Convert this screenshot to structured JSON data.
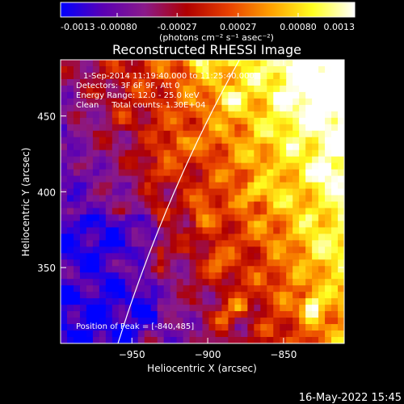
{
  "footer": {
    "date_stamp": "16-May-2022 15:45"
  },
  "colorbar": {
    "tick_labels": [
      "-0.0013",
      "-0.00080",
      "-0.00027",
      "0.00027",
      "0.00080",
      "0.0013"
    ],
    "tick_values": [
      -0.0013,
      -0.0008,
      -0.00027,
      0.00027,
      0.0008,
      0.0013
    ],
    "range": [
      -0.0013,
      0.0013
    ],
    "unit_label": "(photons cm⁻² s⁻¹ asec⁻²)",
    "colormap": [
      "#0000ff",
      "#5a00b4",
      "#8a1a8a",
      "#b00000",
      "#e84000",
      "#ffa000",
      "#ffff20",
      "#ffffff"
    ]
  },
  "chart_data": {
    "type": "heatmap",
    "title": "Reconstructed RHESSI Image",
    "xlabel": "Heliocentric X (arcsec)",
    "ylabel": "Heliocentric Y (arcsec)",
    "xlim": [
      -997,
      -810
    ],
    "ylim": [
      300,
      487
    ],
    "x_tick_labels": [
      "−950",
      "−900",
      "−850"
    ],
    "x_ticks": [
      -950,
      -900,
      -850
    ],
    "y_tick_labels": [
      "350",
      "400",
      "450"
    ],
    "y_ticks": [
      350,
      400,
      450
    ],
    "annotations": {
      "time_range": "1-Sep-2014 11:19:40.000 to 11:25:40.000",
      "detectors": "Detectors: 3F 6F 9F, Att 0",
      "energy_range": "Energy Range: 12.0 - 25.0 keV",
      "clean_counts": "Clean     Total counts: 1.30E+04",
      "peak": "Position of Peak = [-840,485]"
    },
    "peak_position": [
      -840,
      485
    ],
    "limb_color": "#ffffff"
  }
}
